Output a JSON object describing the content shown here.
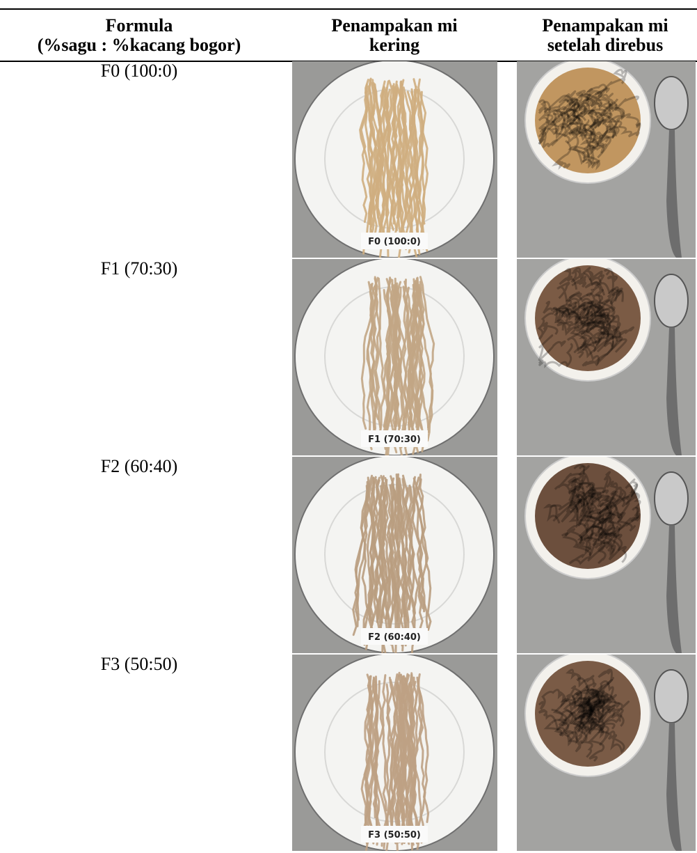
{
  "header": {
    "formula": [
      "Formula",
      "(%sagu : %kacang bogor)"
    ],
    "dry": [
      "Penampakan mi",
      "kering"
    ],
    "cooked": [
      "Penampakan mi",
      "setelah direbus"
    ]
  },
  "rows": [
    {
      "formula": "F0 (100:0)",
      "plate_label": "F0 (100:0)"
    },
    {
      "formula": "F1 (70:30)",
      "plate_label": "F1 (70:30)"
    },
    {
      "formula": "F2 (60:40)",
      "plate_label": "F2 (60:40)"
    },
    {
      "formula": "F3 (50:50)",
      "plate_label": "F3 (50:50)"
    }
  ]
}
